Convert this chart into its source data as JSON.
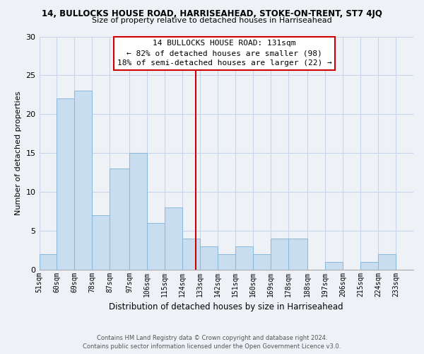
{
  "title_top": "14, BULLOCKS HOUSE ROAD, HARRISEAHEAD, STOKE-ON-TRENT, ST7 4JQ",
  "title_sub": "Size of property relative to detached houses in Harriseahead",
  "xlabel": "Distribution of detached houses by size in Harriseahead",
  "ylabel": "Number of detached properties",
  "bin_labels": [
    "51sqm",
    "60sqm",
    "69sqm",
    "78sqm",
    "87sqm",
    "97sqm",
    "106sqm",
    "115sqm",
    "124sqm",
    "133sqm",
    "142sqm",
    "151sqm",
    "160sqm",
    "169sqm",
    "178sqm",
    "188sqm",
    "197sqm",
    "206sqm",
    "215sqm",
    "224sqm",
    "233sqm"
  ],
  "bin_left_edges": [
    51,
    60,
    69,
    78,
    87,
    97,
    106,
    115,
    124,
    133,
    142,
    151,
    160,
    169,
    178,
    188,
    197,
    206,
    215,
    224,
    233
  ],
  "bin_widths": [
    9,
    9,
    9,
    9,
    10,
    9,
    9,
    9,
    9,
    9,
    9,
    9,
    9,
    9,
    10,
    9,
    9,
    9,
    9,
    9,
    9
  ],
  "counts": [
    2,
    22,
    23,
    7,
    13,
    15,
    6,
    8,
    4,
    3,
    2,
    3,
    2,
    4,
    4,
    0,
    1,
    0,
    1,
    2,
    0
  ],
  "bar_color": "#c9ddf0",
  "bar_edge_color": "#89b8d8",
  "marker_x": 131,
  "marker_color": "#cc0000",
  "annotation_lines": [
    "14 BULLOCKS HOUSE ROAD: 131sqm",
    "← 82% of detached houses are smaller (98)",
    "18% of semi-detached houses are larger (22) →"
  ],
  "ylim": [
    0,
    30
  ],
  "yticks": [
    0,
    5,
    10,
    15,
    20,
    25,
    30
  ],
  "xlim_left": 51,
  "xlim_right": 242,
  "footer_line1": "Contains HM Land Registry data © Crown copyright and database right 2024.",
  "footer_line2": "Contains public sector information licensed under the Open Government Licence v3.0.",
  "background_color": "#eef2f7",
  "grid_color": "#c8d4e8"
}
